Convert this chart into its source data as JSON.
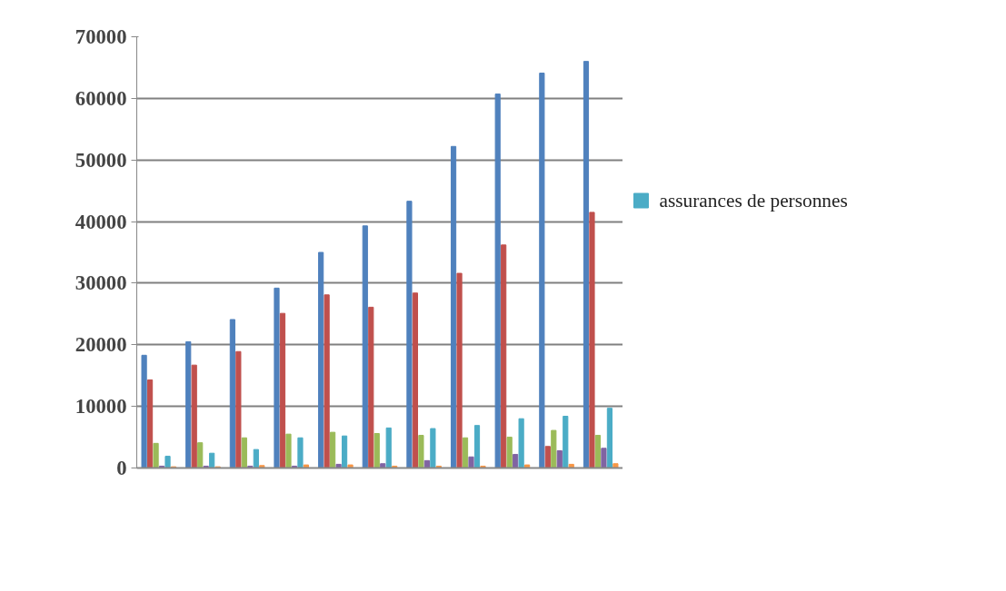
{
  "chart_data": {
    "type": "bar",
    "categories": [
      null,
      null,
      null,
      null,
      null,
      null,
      null,
      null,
      null,
      null,
      null
    ],
    "series": [
      {
        "color": "#4f81bd",
        "values": [
          18300,
          20500,
          24100,
          29200,
          35000,
          39300,
          43300,
          52200,
          60700,
          64100,
          66000
        ]
      },
      {
        "color": "#c0504d",
        "values": [
          14300,
          16700,
          18900,
          25100,
          28100,
          26100,
          28400,
          31600,
          36200,
          3500,
          41500
        ]
      },
      {
        "color": "#9bbb59",
        "values": [
          4000,
          4100,
          4900,
          5500,
          5800,
          5600,
          5300,
          4900,
          5000,
          6100,
          5300
        ]
      },
      {
        "color": "#8064a2",
        "values": [
          300,
          300,
          300,
          300,
          600,
          700,
          1200,
          1800,
          2200,
          2800,
          3200
        ]
      },
      {
        "name": "assurances de personnes",
        "color": "#4bacc6",
        "values": [
          1900,
          2400,
          3000,
          4900,
          5200,
          6500,
          6400,
          6900,
          8000,
          8400,
          9700
        ]
      },
      {
        "color": "#f79646",
        "values": [
          200,
          200,
          400,
          500,
          500,
          300,
          300,
          300,
          500,
          600,
          700
        ]
      }
    ],
    "ylim": [
      0,
      70000
    ],
    "yticks": [
      0,
      10000,
      20000,
      30000,
      40000,
      50000,
      60000,
      70000
    ],
    "grid": "y",
    "legend": "right"
  }
}
